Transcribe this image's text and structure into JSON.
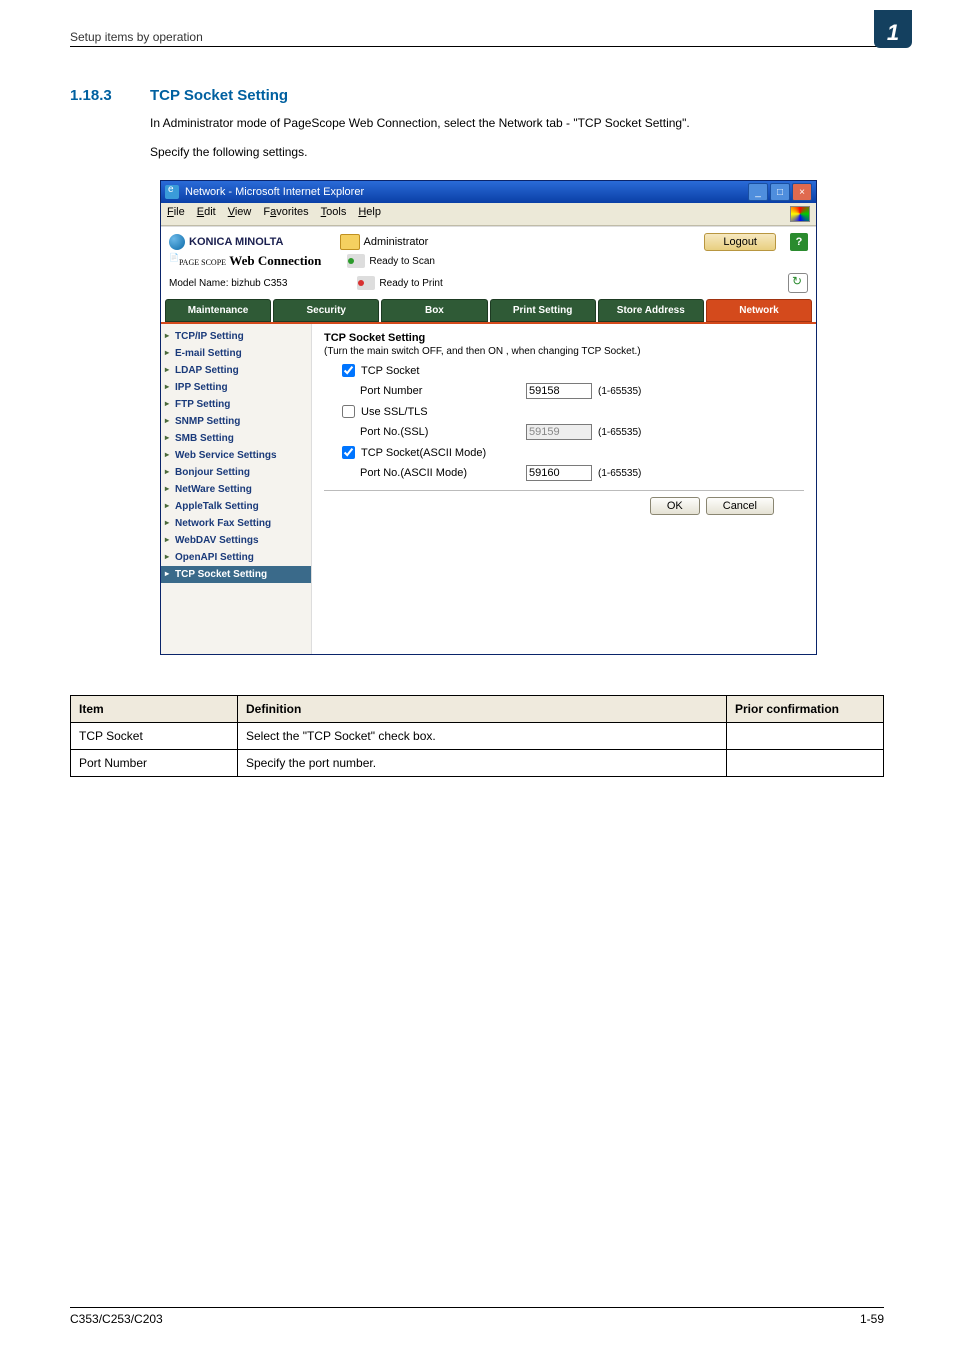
{
  "page": {
    "runningHead": "Setup items by operation",
    "chapterBadge": "1",
    "section": {
      "num": "1.18.3",
      "title": "TCP Socket Setting"
    },
    "intro1": "In Administrator mode of PageScope Web Connection, select the Network tab - \"TCP Socket Setting\".",
    "intro2": "Specify the following settings.",
    "footerLeft": "C353/C253/C203",
    "footerRight": "1-59"
  },
  "browser": {
    "windowTitle": "Network - Microsoft Internet Explorer",
    "menus": [
      "File",
      "Edit",
      "View",
      "Favorites",
      "Tools",
      "Help"
    ],
    "brand": "KONICA MINOLTA",
    "adminLabel": "Administrator",
    "logout": "Logout",
    "productLine1Small": "PAGE SCOPE",
    "productLine1": "Web Connection",
    "status": {
      "scan": "Ready to Scan",
      "print": "Ready to Print"
    },
    "modelLabel": "Model Name:",
    "modelValue": "bizhub C353",
    "tabs": [
      "Maintenance",
      "Security",
      "Box",
      "Print Setting",
      "Store Address",
      "Network"
    ],
    "activeTab": 5,
    "nav": [
      "TCP/IP Setting",
      "E-mail Setting",
      "LDAP Setting",
      "IPP Setting",
      "FTP Setting",
      "SNMP Setting",
      "SMB Setting",
      "Web Service Settings",
      "Bonjour Setting",
      "NetWare Setting",
      "AppleTalk Setting",
      "Network Fax Setting",
      "WebDAV Settings",
      "OpenAPI Setting",
      "TCP Socket Setting"
    ],
    "currentNav": 14,
    "form": {
      "title": "TCP Socket Setting",
      "note": "(Turn the main switch OFF, and then ON , when changing TCP Socket.)",
      "tcpSocketLbl": "TCP Socket",
      "portNumberLbl": "Port Number",
      "port1": "59158",
      "useSslLbl": "Use SSL/TLS",
      "portSslLbl": "Port No.(SSL)",
      "portSsl": "59159",
      "tcpAsciiLbl": "TCP Socket(ASCII Mode)",
      "portAsciiLbl": "Port No.(ASCII Mode)",
      "portAscii": "59160",
      "range": "(1-65535)",
      "ok": "OK",
      "cancel": "Cancel"
    }
  },
  "defTable": {
    "head": {
      "item": "Item",
      "def": "Definition",
      "prior": "Prior confirmation"
    },
    "rows": [
      {
        "item": "TCP Socket",
        "def": "Select the \"TCP Socket\" check box.",
        "prior": ""
      },
      {
        "item": "Port Number",
        "def": "Specify the port number.",
        "prior": ""
      }
    ]
  }
}
